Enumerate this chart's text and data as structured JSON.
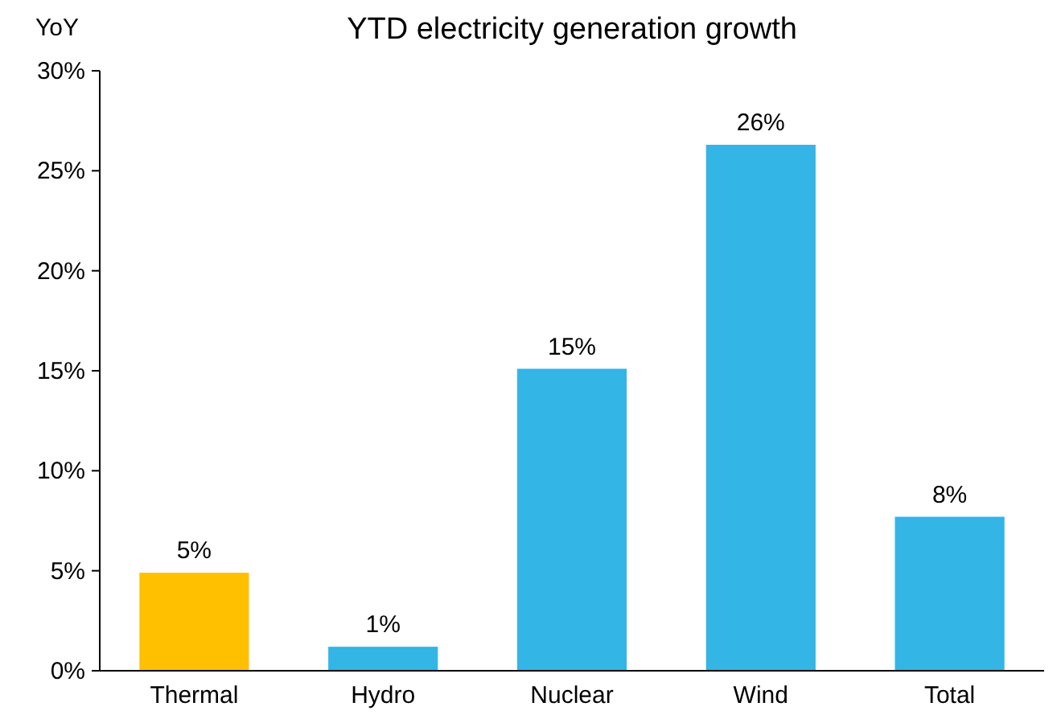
{
  "chart_data": {
    "type": "bar",
    "title": "YTD electricity generation growth",
    "ylabel": "YoY",
    "categories": [
      "Thermal",
      "Hydro",
      "Nuclear",
      "Wind",
      "Total"
    ],
    "values": [
      4.9,
      1.2,
      15.1,
      26.3,
      7.7
    ],
    "colors": [
      "#ffc000",
      "#33b5e5",
      "#33b5e5",
      "#33b5e5",
      "#33b5e5"
    ],
    "value_labels": [
      "5%",
      "1%",
      "15%",
      "26%",
      "8%"
    ],
    "ylim": [
      0,
      30
    ],
    "yticks": [
      {
        "value": 0,
        "label": "0%"
      },
      {
        "value": 5,
        "label": "5%"
      },
      {
        "value": 10,
        "label": "10%"
      },
      {
        "value": 15,
        "label": "15%"
      },
      {
        "value": 20,
        "label": "20%"
      },
      {
        "value": 25,
        "label": "25%"
      },
      {
        "value": 30,
        "label": "30%"
      }
    ],
    "grid": false
  }
}
